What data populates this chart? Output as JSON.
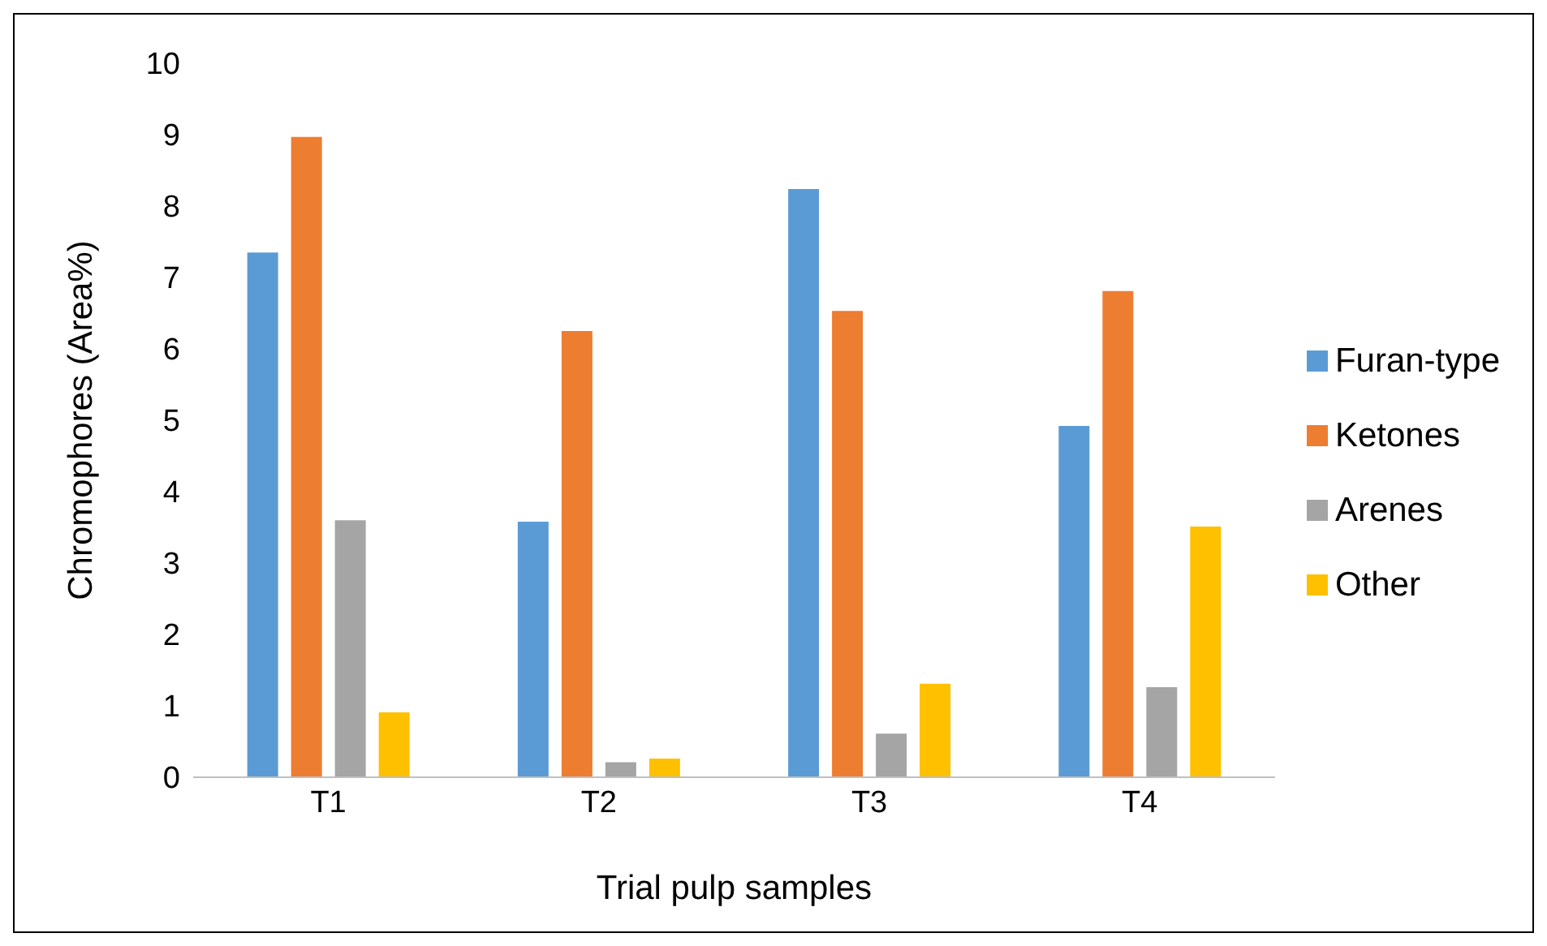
{
  "chart_data": {
    "type": "bar",
    "xlabel": "Trial pulp samples",
    "ylabel": "Chromophores (Area%)",
    "categories": [
      "T1",
      "T2",
      "T3",
      "T4"
    ],
    "series": [
      {
        "name": "Furan-type",
        "color": "#5b9bd5",
        "values": [
          7.35,
          3.58,
          8.24,
          4.92
        ]
      },
      {
        "name": "Ketones",
        "color": "#ed7d31",
        "values": [
          8.97,
          6.25,
          6.53,
          6.81
        ]
      },
      {
        "name": "Arenes",
        "color": "#a5a5a5",
        "values": [
          3.6,
          0.21,
          0.61,
          1.26
        ]
      },
      {
        "name": "Other",
        "color": "#ffc000",
        "values": [
          0.91,
          0.26,
          1.31,
          3.51
        ]
      }
    ],
    "ylim": [
      0,
      10
    ],
    "yticks": [
      0,
      1,
      2,
      3,
      4,
      5,
      6,
      7,
      8,
      9,
      10
    ],
    "grid": false,
    "legend": "right"
  }
}
